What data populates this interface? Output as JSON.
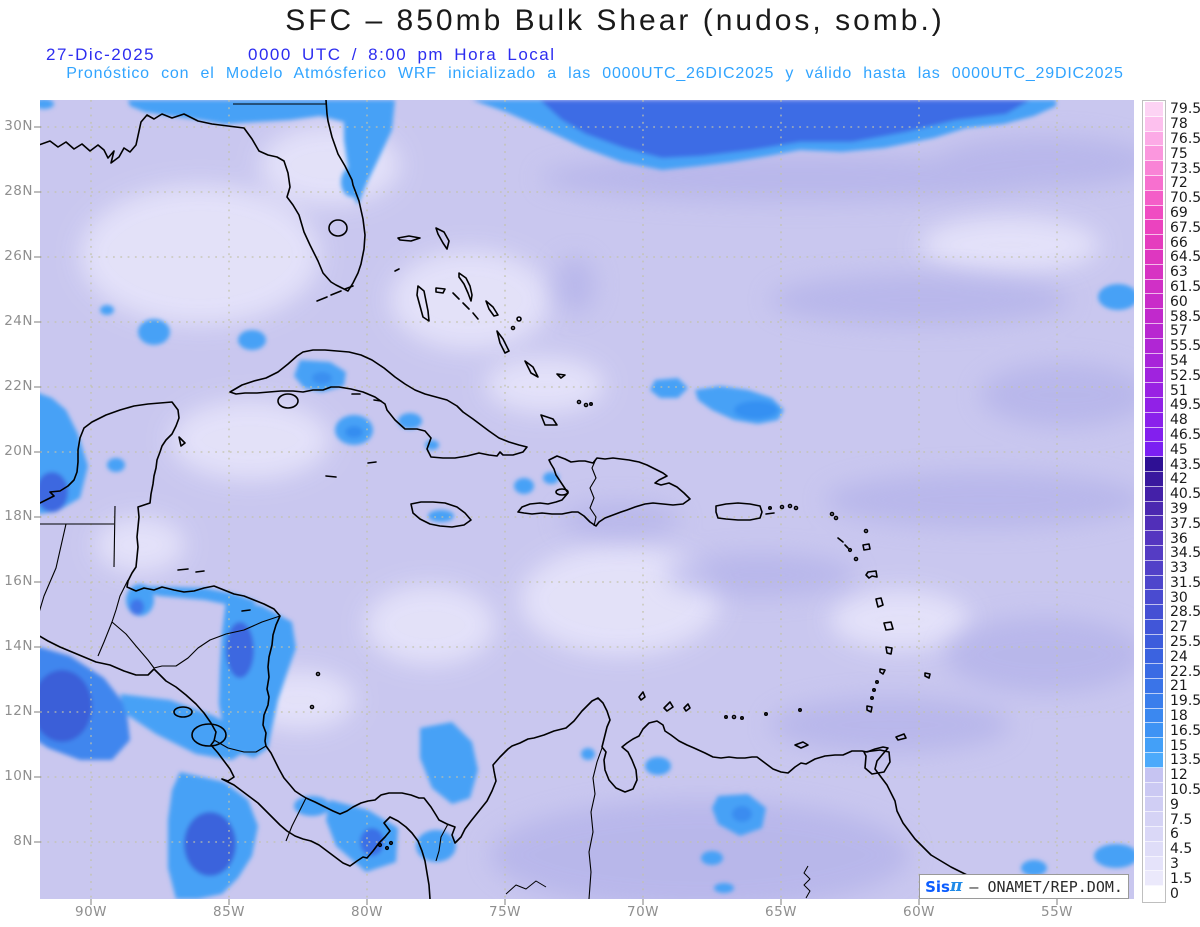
{
  "header": {
    "title": "SFC – 850mb Bulk Shear (nudos, somb.)",
    "date": "27-Dic-2025",
    "time": "0000 UTC / 8:00 pm Hora Local",
    "subtitle": "Pronóstico con el Modelo Atmósferico WRF inicializado a las 0000UTC_26DIC2025 y válido hasta las 0000UTC_29DIC2025"
  },
  "map": {
    "lat_labels": [
      "30N",
      "28N",
      "26N",
      "24N",
      "22N",
      "20N",
      "18N",
      "16N",
      "14N",
      "12N",
      "10N",
      "8N"
    ],
    "lon_labels": [
      "90W",
      "85W",
      "80W",
      "75W",
      "70W",
      "65W",
      "60W",
      "55W"
    ]
  },
  "colorbar": {
    "units": "nudos",
    "entries": [
      {
        "label": "79.5",
        "color": "#fdd3f4"
      },
      {
        "label": "78",
        "color": "#fdc0ee"
      },
      {
        "label": "76.5",
        "color": "#fcaae6"
      },
      {
        "label": "75",
        "color": "#fb97de"
      },
      {
        "label": "73.5",
        "color": "#f983d6"
      },
      {
        "label": "72",
        "color": "#f770cf"
      },
      {
        "label": "70.5",
        "color": "#f45ec8"
      },
      {
        "label": "69",
        "color": "#f04cc2"
      },
      {
        "label": "67.5",
        "color": "#eb43bf"
      },
      {
        "label": "66",
        "color": "#e53cbe"
      },
      {
        "label": "64.5",
        "color": "#de37c0"
      },
      {
        "label": "63",
        "color": "#d733c3"
      },
      {
        "label": "61.5",
        "color": "#d030c6"
      },
      {
        "label": "60",
        "color": "#c92cc9"
      },
      {
        "label": "58.5",
        "color": "#c129cc"
      },
      {
        "label": "57",
        "color": "#b827d0"
      },
      {
        "label": "55.5",
        "color": "#b026d4"
      },
      {
        "label": "54",
        "color": "#a824d9"
      },
      {
        "label": "52.5",
        "color": "#a023de"
      },
      {
        "label": "51",
        "color": "#9922e3"
      },
      {
        "label": "49.5",
        "color": "#9121e7"
      },
      {
        "label": "48",
        "color": "#8a20eb"
      },
      {
        "label": "46.5",
        "color": "#831fee"
      },
      {
        "label": "45",
        "color": "#7b1ff2"
      },
      {
        "label": "43.5",
        "color": "#2e1094"
      },
      {
        "label": "42",
        "color": "#39189e"
      },
      {
        "label": "40.5",
        "color": "#4420a8"
      },
      {
        "label": "39",
        "color": "#4b28b0"
      },
      {
        "label": "37.5",
        "color": "#512fb8"
      },
      {
        "label": "36",
        "color": "#5536c0"
      },
      {
        "label": "34.5",
        "color": "#553cc4"
      },
      {
        "label": "33",
        "color": "#5241c8"
      },
      {
        "label": "31.5",
        "color": "#4e46cc"
      },
      {
        "label": "30",
        "color": "#4a4bd0"
      },
      {
        "label": "28.5",
        "color": "#4550d4"
      },
      {
        "label": "27",
        "color": "#4156d8"
      },
      {
        "label": "25.5",
        "color": "#3d5cdc"
      },
      {
        "label": "24",
        "color": "#3b63e0"
      },
      {
        "label": "22.5",
        "color": "#3a6be4"
      },
      {
        "label": "21",
        "color": "#3a74e8"
      },
      {
        "label": "19.5",
        "color": "#3a7eec"
      },
      {
        "label": "18",
        "color": "#3b88f0"
      },
      {
        "label": "16.5",
        "color": "#3e93f4"
      },
      {
        "label": "15",
        "color": "#43a0f8"
      },
      {
        "label": "13.5",
        "color": "#4caafb"
      },
      {
        "label": "12",
        "color": "#c6c4f2"
      },
      {
        "label": "10.5",
        "color": "#cbc9f3"
      },
      {
        "label": "9",
        "color": "#d0cef4"
      },
      {
        "label": "7.5",
        "color": "#d5d3f5"
      },
      {
        "label": "6",
        "color": "#dad8f7"
      },
      {
        "label": "4.5",
        "color": "#dfddf8"
      },
      {
        "label": "3",
        "color": "#e5e3fa"
      },
      {
        "label": "1.5",
        "color": "#ebe9fb"
      },
      {
        "label": "0",
        "color": "#ffffff"
      }
    ]
  },
  "watermark": {
    "sis": "Sis",
    "pi": "π",
    "rest": "— ONAMET/REP.DOM."
  },
  "colors": {
    "base_field": "#c9c7ef",
    "light_field": "#e6e4fa",
    "dark_field": "#aeade8",
    "bright_blue": "#47a1f6",
    "royal_blue": "#3a70e6",
    "deep_blue": "#3a5fd8",
    "header_blue": "#2d2df0",
    "subtitle_cyan": "#31a4ff",
    "axis_gray": "#8f8f8f"
  }
}
